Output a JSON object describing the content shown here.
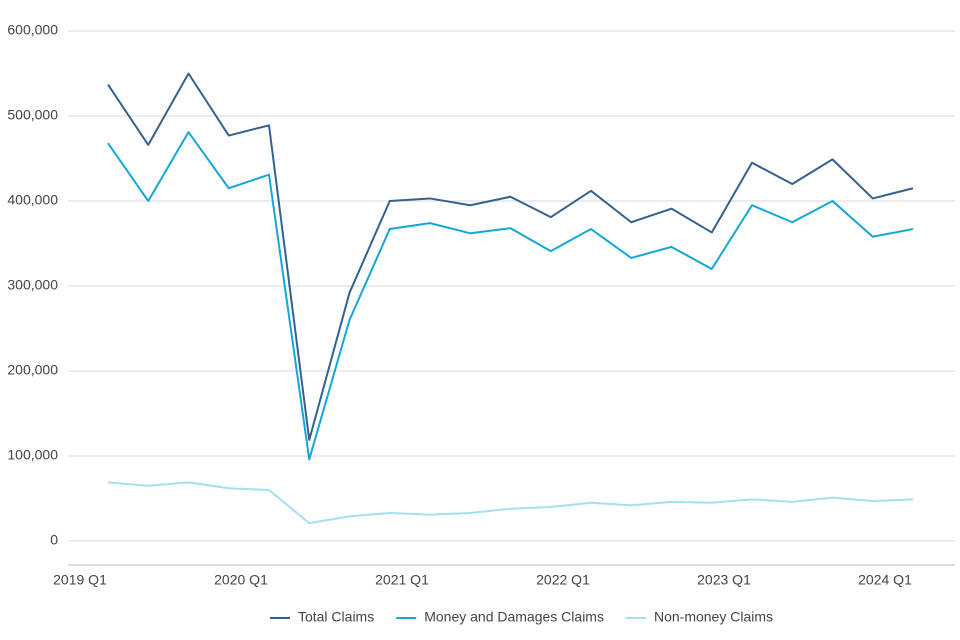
{
  "chart_data": {
    "type": "line",
    "categories": [
      "2019 Q1",
      null,
      null,
      null,
      "2020 Q1",
      null,
      null,
      null,
      "2021 Q1",
      null,
      null,
      null,
      "2022 Q1",
      null,
      null,
      null,
      "2023 Q1",
      null,
      null,
      null,
      "2024 Q1"
    ],
    "series": [
      {
        "name": "Total Claims",
        "color": "#34618f",
        "values": [
          537000,
          466000,
          550000,
          477000,
          489000,
          119000,
          292000,
          400000,
          403000,
          395000,
          405000,
          381000,
          412000,
          375000,
          391000,
          363000,
          445000,
          420000,
          449000,
          403000,
          415000
        ]
      },
      {
        "name": "Money and Damages Claims",
        "color": "#12a7d8",
        "values": [
          468000,
          400000,
          481000,
          415000,
          431000,
          96000,
          260000,
          367000,
          374000,
          362000,
          368000,
          341000,
          367000,
          333000,
          346000,
          320000,
          395000,
          375000,
          400000,
          358000,
          367000
        ]
      },
      {
        "name": "Non-money Claims",
        "color": "#a3dff0",
        "values": [
          69000,
          65000,
          69000,
          62000,
          60000,
          21000,
          29000,
          33000,
          31000,
          33000,
          38000,
          40000,
          45000,
          42000,
          46000,
          45000,
          49000,
          46000,
          51000,
          47000,
          49000
        ]
      }
    ],
    "ylim": [
      0,
      600000
    ],
    "yticks": [
      0,
      {
        "value": 100000,
        "label": "100,000"
      },
      {
        "value": 200000,
        "label": "200,000"
      },
      {
        "value": 300000,
        "label": "300,000"
      },
      {
        "value": 400000,
        "label": "400,000"
      },
      {
        "value": 500000,
        "label": "500,000"
      },
      {
        "value": 600000,
        "label": "600,000"
      }
    ],
    "grid": true,
    "legend": "bottom"
  }
}
